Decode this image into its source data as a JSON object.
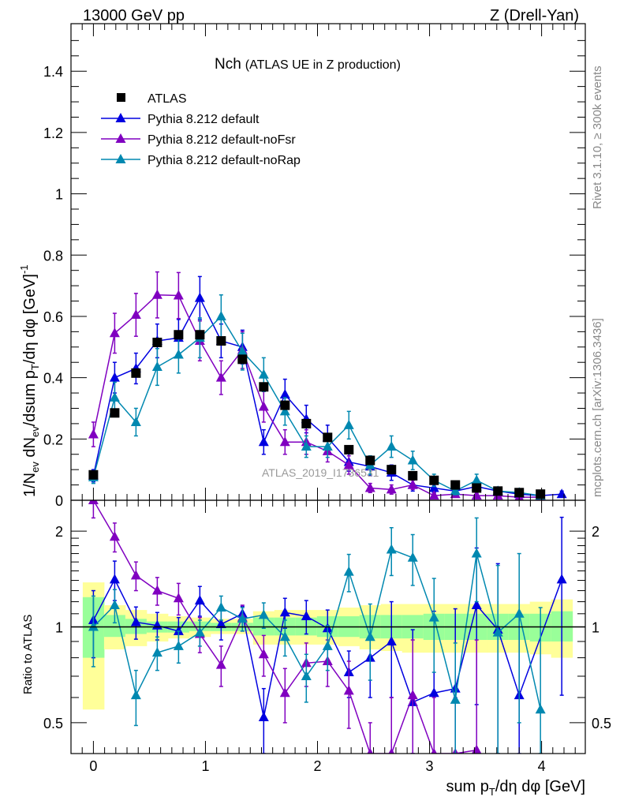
{
  "header": {
    "left": "13000 GeV pp",
    "right": "Z (Drell-Yan)"
  },
  "side_labels": {
    "rivet": "Rivet 3.1.10, ≥ 300k events",
    "mcplots": "mcplots.cern.ch [arXiv:1306.3436]"
  },
  "chart_data": {
    "type": "line",
    "title_main": "Nch",
    "title_sub": "(ATLAS UE in Z production)",
    "watermark": "ATLAS_2019_I1736531",
    "ylabel": "1/N_ev dN_ev/dsum p_T/dη dφ [GeV]^-1",
    "ylabel_parts": {
      "a": "1/N",
      "a_sub": "ev",
      "b": " dN",
      "b_sub": "ev",
      "c": "/dsum p",
      "c_sub": "T",
      "d": "/dη dφ  [GeV]",
      "d_sup": "-1"
    },
    "xlabel_parts": {
      "a": "sum p",
      "a_sub": "T",
      "b": "/dη dφ [GeV]"
    },
    "ratio_ylabel": "Ratio to ATLAS",
    "xlim": [
      -0.2,
      4.39
    ],
    "ylim": [
      0,
      1.555
    ],
    "ratio_ylim": [
      0.4,
      2.5
    ],
    "ratio_scale": "log",
    "x_ticks": [
      "0",
      "1",
      "2",
      "3",
      "4"
    ],
    "y_ticks": [
      "0",
      "0.2",
      "0.4",
      "0.6",
      "0.8",
      "1",
      "1.2",
      "1.4"
    ],
    "ratio_ticks": [
      "0.5",
      "1",
      "2"
    ],
    "legend_position": "top-left",
    "x": [
      0,
      0.19,
      0.38,
      0.57,
      0.76,
      0.95,
      1.14,
      1.33,
      1.52,
      1.71,
      1.9,
      2.09,
      2.28,
      2.47,
      2.66,
      2.85,
      3.04,
      3.23,
      3.42,
      3.61,
      3.8,
      3.99,
      4.18
    ],
    "data": {
      "name": "ATLAS",
      "color": "#000000",
      "values": [
        0.083,
        0.285,
        0.415,
        0.515,
        0.54,
        0.54,
        0.52,
        0.46,
        0.37,
        0.31,
        0.25,
        0.205,
        0.165,
        0.13,
        0.1,
        0.08,
        0.065,
        0.05,
        0.04,
        0.03,
        0.025,
        0.02,
        null
      ],
      "band_outer": [
        [
          0.55,
          1.38
        ],
        [
          0.85,
          1.17
        ],
        [
          0.87,
          1.13
        ],
        [
          0.9,
          1.1
        ],
        [
          0.92,
          1.08
        ],
        [
          0.93,
          1.07
        ],
        [
          0.95,
          1.06
        ],
        [
          0.95,
          1.06
        ],
        [
          0.88,
          1.12
        ],
        [
          0.88,
          1.13
        ],
        [
          0.88,
          1.13
        ],
        [
          0.88,
          1.13
        ],
        [
          0.87,
          1.15
        ],
        [
          0.85,
          1.17
        ],
        [
          0.84,
          1.18
        ],
        [
          0.83,
          1.18
        ],
        [
          0.83,
          1.18
        ],
        [
          0.83,
          1.18
        ],
        [
          0.83,
          1.18
        ],
        [
          0.83,
          1.18
        ],
        [
          0.83,
          1.18
        ],
        [
          0.82,
          1.2
        ],
        [
          0.8,
          1.22
        ]
      ],
      "band_inner": [
        [
          0.8,
          1.24
        ],
        [
          0.93,
          1.09
        ],
        [
          0.95,
          1.06
        ],
        [
          0.96,
          1.04
        ],
        [
          0.96,
          1.04
        ],
        [
          0.97,
          1.04
        ],
        [
          0.97,
          1.03
        ],
        [
          0.97,
          1.03
        ],
        [
          0.94,
          1.07
        ],
        [
          0.94,
          1.07
        ],
        [
          0.94,
          1.07
        ],
        [
          0.93,
          1.08
        ],
        [
          0.93,
          1.08
        ],
        [
          0.92,
          1.09
        ],
        [
          0.92,
          1.09
        ],
        [
          0.92,
          1.09
        ],
        [
          0.91,
          1.1
        ],
        [
          0.91,
          1.1
        ],
        [
          0.91,
          1.1
        ],
        [
          0.91,
          1.1
        ],
        [
          0.91,
          1.1
        ],
        [
          0.9,
          1.1
        ],
        [
          0.9,
          1.12
        ]
      ]
    },
    "series": [
      {
        "name": "Pythia 8.212 default",
        "color": "#0000e0",
        "values": [
          0.08,
          0.4,
          0.43,
          0.52,
          0.53,
          0.66,
          0.52,
          0.5,
          0.19,
          0.345,
          0.265,
          0.205,
          0.125,
          0.11,
          0.09,
          0.05,
          0.04,
          0.03,
          0.045,
          0.03,
          0.02,
          0.015,
          0.02
        ],
        "errors": [
          0.02,
          0.05,
          0.05,
          0.055,
          0.06,
          0.07,
          0.055,
          0.055,
          0.04,
          0.05,
          0.045,
          0.04,
          0.03,
          0.03,
          0.025,
          0.02,
          0.015,
          0.012,
          0.015,
          0.012,
          0.01,
          0.008,
          0.01
        ],
        "ratio": [
          1.05,
          1.41,
          1.035,
          1.01,
          0.97,
          1.21,
          1.02,
          1.1,
          0.52,
          1.11,
          1.08,
          0.99,
          0.72,
          0.8,
          0.9,
          0.58,
          0.62,
          0.64,
          1.17,
          0.98,
          0.61,
          null,
          1.41
        ],
        "ratio_errors": [
          0.25,
          0.2,
          0.12,
          0.1,
          0.1,
          0.13,
          0.11,
          0.06,
          0.12,
          0.12,
          0.13,
          0.14,
          0.12,
          0.2,
          0.3,
          0.4,
          0.5,
          0.5,
          0.6,
          0.6,
          0.5,
          null,
          0.8
        ]
      },
      {
        "name": "Pythia 8.212 default-noFsr",
        "color": "#8000c0",
        "values": [
          0.215,
          0.545,
          0.605,
          0.67,
          0.668,
          0.52,
          0.4,
          0.49,
          0.305,
          0.19,
          0.19,
          0.16,
          0.115,
          0.04,
          0.035,
          0.05,
          0.015,
          0.02,
          0.015,
          0.015,
          0.01,
          0.01,
          null
        ],
        "errors": [
          0.04,
          0.065,
          0.07,
          0.075,
          0.075,
          0.065,
          0.055,
          0.06,
          0.05,
          0.04,
          0.04,
          0.035,
          0.03,
          0.015,
          0.015,
          0.015,
          0.008,
          0.008,
          0.008,
          0.008,
          0.006,
          0.006,
          null
        ],
        "ratio": [
          2.6,
          1.92,
          1.45,
          1.3,
          1.23,
          0.95,
          0.76,
          1.07,
          0.82,
          0.62,
          0.77,
          0.78,
          0.63,
          0.3,
          0.3,
          0.61,
          0.3,
          0.3,
          0.41,
          null,
          null,
          null,
          null
        ],
        "ratio_errors": [
          0.4,
          0.2,
          0.15,
          0.13,
          0.14,
          0.12,
          0.11,
          0.1,
          0.12,
          0.12,
          0.12,
          0.13,
          0.15,
          0.2,
          0.3,
          0.3,
          0.3,
          0.3,
          0.5,
          null,
          null,
          null,
          null
        ]
      },
      {
        "name": "Pythia 8.212 default-noRap",
        "color": "#0088b0",
        "values": [
          0.075,
          0.335,
          0.255,
          0.435,
          0.475,
          0.53,
          0.6,
          0.485,
          0.41,
          0.29,
          0.175,
          0.175,
          0.245,
          0.115,
          0.175,
          0.13,
          0.065,
          0.03,
          0.065,
          0.03,
          0.025,
          0.015,
          null
        ],
        "errors": [
          0.02,
          0.05,
          0.045,
          0.06,
          0.06,
          0.065,
          0.07,
          0.06,
          0.055,
          0.045,
          0.035,
          0.035,
          0.045,
          0.03,
          0.035,
          0.03,
          0.02,
          0.012,
          0.02,
          0.012,
          0.01,
          0.008,
          null
        ],
        "ratio": [
          1.0,
          1.17,
          0.61,
          0.83,
          0.87,
          0.96,
          1.15,
          1.06,
          1.09,
          0.93,
          0.7,
          0.87,
          1.49,
          0.93,
          1.75,
          1.65,
          1.07,
          0.59,
          1.7,
          0.96,
          1.1,
          0.55,
          null
        ],
        "ratio_errors": [
          0.25,
          0.14,
          0.12,
          0.1,
          0.1,
          0.09,
          0.1,
          0.09,
          0.1,
          0.12,
          0.12,
          0.14,
          0.2,
          0.25,
          0.3,
          0.3,
          0.35,
          0.3,
          0.5,
          0.6,
          0.6,
          0.6,
          null
        ]
      }
    ]
  }
}
